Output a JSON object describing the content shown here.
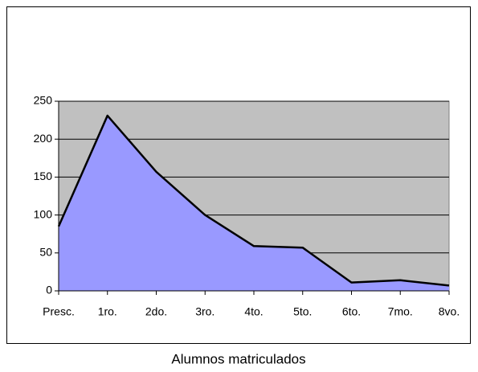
{
  "chart_data": {
    "type": "area",
    "title": "Alumnos matriculados",
    "categories": [
      "Presc.",
      "1ro.",
      "2do.",
      "3ro.",
      "4to.",
      "5to.",
      "6to.",
      "7mo.",
      "8vo."
    ],
    "values": [
      85,
      231,
      157,
      100,
      59,
      57,
      11,
      14,
      7
    ],
    "color": "#9999ff",
    "line_color": "#000000",
    "plot_background": "#c0c0c0",
    "ylim": [
      0,
      250
    ],
    "yticks": [
      0,
      50,
      100,
      150,
      200,
      250
    ],
    "grid": true
  }
}
